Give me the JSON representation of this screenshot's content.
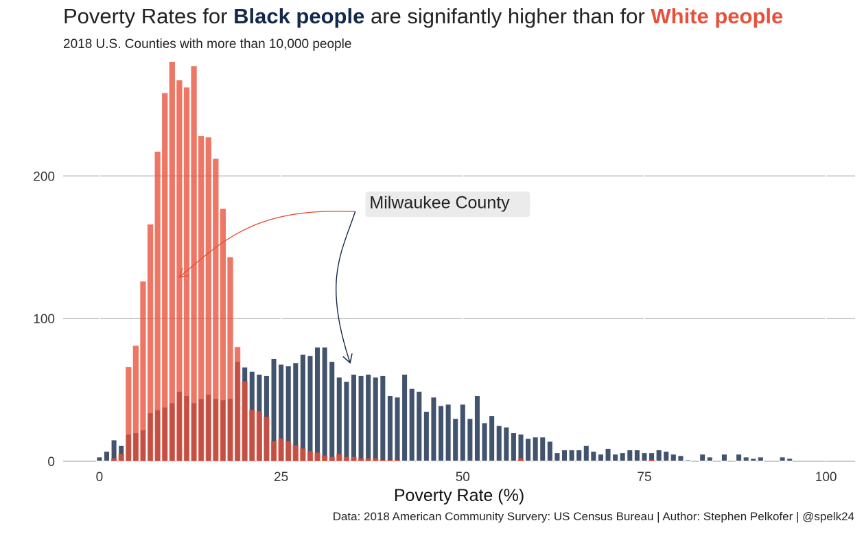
{
  "title": {
    "part1": "Poverty Rates for ",
    "highlight1": "Black people",
    "part2": " are signifantly higher than for ",
    "highlight2": "White people"
  },
  "subtitle": "2018 U.S. Counties with more than 10,000 people",
  "caption": "Data: 2018 American Community Survery: US Census Bureau | Author: Stephen Pelkofer | @spelk24",
  "annotation": {
    "label": "Milwaukee County",
    "black_target": 34.5,
    "white_target": 11
  },
  "colors": {
    "black": "#13284a",
    "white": "#e8503a",
    "label_bg": "#ebebeb",
    "grid": "#999999"
  },
  "chart_data": {
    "type": "bar",
    "xlabel": "Poverty Rate (%)",
    "ylabel": "",
    "xlim": [
      -5,
      104
    ],
    "ylim": [
      0,
      280
    ],
    "xticks": [
      0,
      25,
      50,
      75,
      100
    ],
    "yticks": [
      0,
      100,
      200
    ],
    "bin_width": 1,
    "grid": "horizontal",
    "series": [
      {
        "name": "Black people",
        "x": [
          0,
          1,
          2,
          3,
          4,
          5,
          6,
          7,
          8,
          9,
          10,
          11,
          12,
          13,
          14,
          15,
          16,
          17,
          18,
          19,
          20,
          21,
          22,
          23,
          24,
          25,
          26,
          27,
          28,
          29,
          30,
          31,
          32,
          33,
          34,
          35,
          36,
          37,
          38,
          39,
          40,
          41,
          42,
          43,
          44,
          45,
          46,
          47,
          48,
          49,
          50,
          51,
          52,
          53,
          54,
          55,
          56,
          57,
          58,
          59,
          60,
          61,
          62,
          63,
          64,
          65,
          66,
          67,
          68,
          69,
          70,
          71,
          72,
          73,
          74,
          75,
          76,
          77,
          78,
          79,
          80,
          81,
          82,
          83,
          84,
          85,
          86,
          87,
          88,
          89,
          90,
          91,
          92,
          93,
          94,
          95,
          96,
          97,
          98,
          99
        ],
        "values": [
          3,
          7,
          15,
          11,
          19,
          20,
          22,
          34,
          36,
          38,
          41,
          49,
          46,
          41,
          44,
          47,
          44,
          43,
          44,
          70,
          66,
          63,
          61,
          60,
          72,
          68,
          67,
          69,
          75,
          74,
          80,
          80,
          70,
          59,
          56,
          61,
          60,
          61,
          59,
          60,
          46,
          45,
          61,
          51,
          49,
          35,
          45,
          39,
          40,
          30,
          40,
          30,
          46,
          27,
          32,
          25,
          24,
          20,
          19,
          16,
          17,
          17,
          14,
          6,
          8,
          8,
          8,
          11,
          7,
          5,
          9,
          5,
          6,
          8,
          8,
          6,
          6,
          8,
          7,
          5,
          4,
          1,
          0,
          5,
          3,
          0,
          5,
          0,
          5,
          3,
          2,
          3,
          0,
          0,
          3,
          2,
          0,
          0,
          0,
          0
        ]
      },
      {
        "name": "White people",
        "x": [
          0,
          1,
          2,
          3,
          4,
          5,
          6,
          7,
          8,
          9,
          10,
          11,
          12,
          13,
          14,
          15,
          16,
          17,
          18,
          19,
          20,
          21,
          22,
          23,
          24,
          25,
          26,
          27,
          28,
          29,
          30,
          31,
          32,
          33,
          34,
          35,
          36,
          37,
          38,
          39,
          40,
          41,
          42,
          43,
          44,
          45,
          46,
          47,
          48,
          49,
          50,
          51,
          52,
          53,
          54,
          55,
          56,
          57,
          58,
          59,
          60,
          61,
          62,
          63,
          64,
          65,
          66,
          67,
          68,
          69,
          70,
          71,
          72,
          73,
          74,
          75,
          76,
          77,
          78,
          79,
          80,
          81,
          82,
          83,
          84,
          85,
          86,
          87,
          88,
          89,
          90,
          91,
          92,
          93,
          94,
          95,
          96,
          97,
          98,
          99
        ],
        "values": [
          0,
          0,
          2,
          5,
          66,
          81,
          126,
          166,
          217,
          258,
          280,
          267,
          262,
          277,
          228,
          227,
          212,
          177,
          143,
          80,
          56,
          36,
          35,
          31,
          14,
          16,
          14,
          11,
          9,
          7,
          6,
          4,
          3,
          5,
          3,
          3,
          2,
          2,
          2,
          1,
          1,
          1,
          0,
          0,
          0,
          0,
          0,
          0,
          0,
          0,
          0,
          0,
          0,
          0,
          0,
          0,
          0,
          0,
          2,
          0,
          0,
          0,
          0,
          0,
          0,
          0,
          0,
          0,
          0,
          0,
          0,
          0,
          0,
          0,
          0,
          0,
          1,
          0,
          0,
          0,
          0,
          0,
          0,
          0,
          0,
          0,
          0,
          0,
          0,
          0,
          0,
          0,
          0,
          0,
          0,
          0,
          0,
          0,
          0,
          0
        ]
      }
    ]
  }
}
